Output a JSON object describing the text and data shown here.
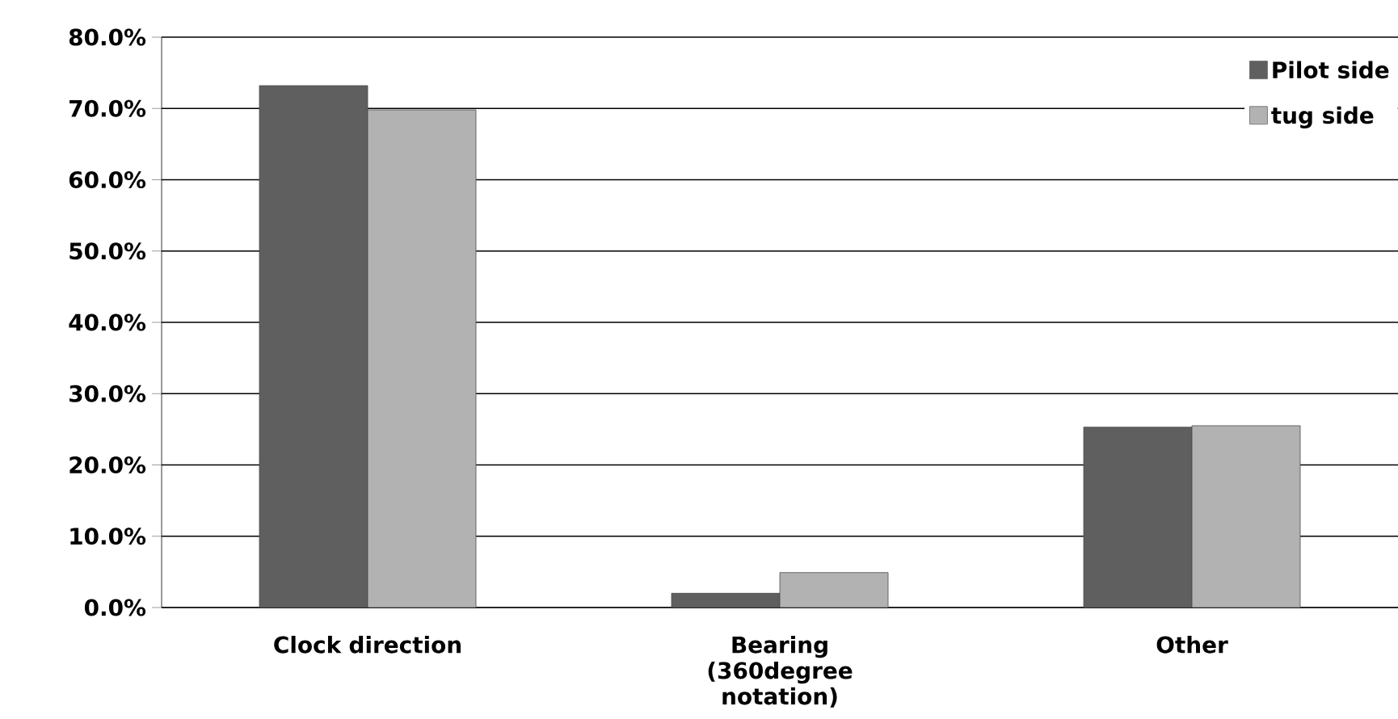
{
  "chart_data": {
    "type": "bar",
    "categories": [
      "Clock direction",
      "Bearing (360degree notation)",
      "Other"
    ],
    "series": [
      {
        "name": "Pilot side",
        "color": "#5f5f5f",
        "values": [
          73.2,
          2.0,
          25.3
        ]
      },
      {
        "name": "tug side",
        "color": "#b2b2b2",
        "values": [
          69.8,
          4.9,
          25.5
        ]
      }
    ],
    "ylim": [
      0,
      80
    ],
    "yticks": [
      {
        "value": 0,
        "label": "0.0%"
      },
      {
        "value": 10,
        "label": "10.0%"
      },
      {
        "value": 20,
        "label": "20.0%"
      },
      {
        "value": 30,
        "label": "30.0%"
      },
      {
        "value": 40,
        "label": "40.0%"
      },
      {
        "value": 50,
        "label": "50.0%"
      },
      {
        "value": 60,
        "label": "60.0%"
      },
      {
        "value": 70,
        "label": "70.0%"
      },
      {
        "value": 80,
        "label": "80.0%"
      }
    ],
    "grid": "y",
    "legend": "top right"
  }
}
